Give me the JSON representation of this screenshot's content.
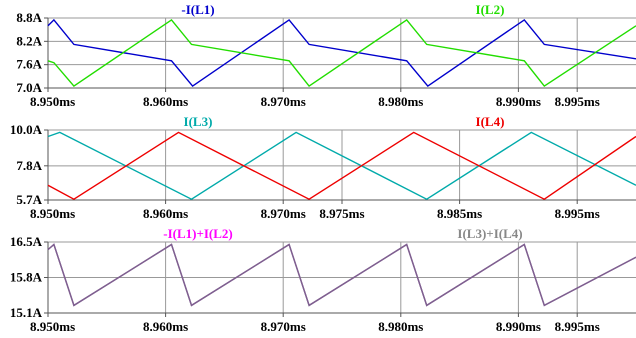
{
  "chart_data": [
    {
      "type": "line",
      "ylim": [
        7.0,
        8.8
      ],
      "xlim": [
        8.95,
        9.0
      ],
      "x_ticks": [
        "8.950ms",
        "8.960ms",
        "8.970ms",
        "8.980ms",
        "8.990ms",
        "8.995ms"
      ],
      "x_tick_values": [
        8.95,
        8.96,
        8.97,
        8.98,
        8.99,
        8.995
      ],
      "y_ticks": [
        "8.8A",
        "8.2A",
        "7.6A",
        "7.0A"
      ],
      "y_tick_values": [
        8.8,
        8.2,
        7.6,
        7.0
      ],
      "grid": true,
      "series": [
        {
          "name": "-I(L1)",
          "color": "#0000cc",
          "x": [
            8.95,
            8.9505,
            8.9522,
            8.9605,
            8.9623,
            8.9705,
            8.9722,
            8.9805,
            8.9823,
            8.9905,
            8.9922,
            9.0
          ],
          "y": [
            8.6,
            8.75,
            8.12,
            7.7,
            7.05,
            8.75,
            8.12,
            7.7,
            7.05,
            8.75,
            8.12,
            7.75
          ]
        },
        {
          "name": "I(L2)",
          "color": "#22dd00",
          "x": [
            8.95,
            8.9505,
            8.9522,
            8.9605,
            8.9622,
            8.9705,
            8.9722,
            8.9805,
            8.9822,
            8.9905,
            8.9922,
            9.0
          ],
          "y": [
            7.7,
            7.65,
            7.05,
            8.75,
            8.12,
            7.7,
            7.05,
            8.75,
            8.12,
            7.7,
            7.05,
            8.6
          ]
        }
      ]
    },
    {
      "type": "line",
      "ylim": [
        5.7,
        10.0
      ],
      "xlim": [
        8.95,
        9.0
      ],
      "x_ticks": [
        "8.950ms",
        "8.960ms",
        "8.970ms",
        "8.975ms",
        "8.985ms",
        "8.995ms"
      ],
      "x_tick_values": [
        8.95,
        8.96,
        8.97,
        8.975,
        8.985,
        8.995
      ],
      "y_ticks": [
        "10.0A",
        "7.8A",
        "5.7A"
      ],
      "y_tick_values": [
        10.0,
        7.8,
        5.7
      ],
      "grid": true,
      "series": [
        {
          "name": "I(L3)",
          "color": "#00aaaa",
          "x": [
            8.95,
            8.951,
            8.9622,
            8.9711,
            8.9822,
            8.9911,
            9.0
          ],
          "y": [
            9.6,
            9.85,
            5.75,
            9.85,
            5.75,
            9.85,
            6.6
          ]
        },
        {
          "name": "I(L4)",
          "color": "#ee0000",
          "x": [
            8.95,
            8.9522,
            8.9611,
            8.9722,
            8.9811,
            8.9922,
            9.0
          ],
          "y": [
            6.6,
            5.75,
            9.85,
            5.75,
            9.85,
            5.75,
            9.6
          ]
        }
      ]
    },
    {
      "type": "line",
      "ylim": [
        15.1,
        16.5
      ],
      "xlim": [
        8.95,
        9.0
      ],
      "x_ticks": [
        "8.950ms",
        "8.960ms",
        "8.970ms",
        "8.980ms",
        "8.990ms",
        "8.995ms"
      ],
      "x_tick_values": [
        8.95,
        8.96,
        8.97,
        8.98,
        8.99,
        8.995
      ],
      "y_ticks": [
        "16.5A",
        "15.8A",
        "15.1A"
      ],
      "y_tick_values": [
        16.5,
        15.8,
        15.1
      ],
      "grid": true,
      "series": [
        {
          "name": "-I(L1)+I(L2)",
          "color": "#ff00ff",
          "x": [
            8.95,
            8.9505,
            8.9522,
            8.9605,
            8.9622,
            8.9705,
            8.9722,
            8.9805,
            8.9822,
            8.9905,
            8.9922,
            9.0
          ],
          "y": [
            16.35,
            16.45,
            15.25,
            16.45,
            15.25,
            16.45,
            15.25,
            16.45,
            15.25,
            16.45,
            15.25,
            16.2
          ]
        },
        {
          "name": "I(L3)+I(L4)",
          "color": "#888888",
          "x": [
            8.95,
            8.9505,
            8.9522,
            8.9605,
            8.9622,
            8.9705,
            8.9722,
            8.9805,
            8.9822,
            8.9905,
            8.9922,
            9.0
          ],
          "y": [
            16.35,
            16.45,
            15.25,
            16.45,
            15.25,
            16.45,
            15.25,
            16.45,
            15.25,
            16.45,
            15.25,
            16.2
          ]
        }
      ],
      "overlay_color": "#7f5f90"
    }
  ]
}
